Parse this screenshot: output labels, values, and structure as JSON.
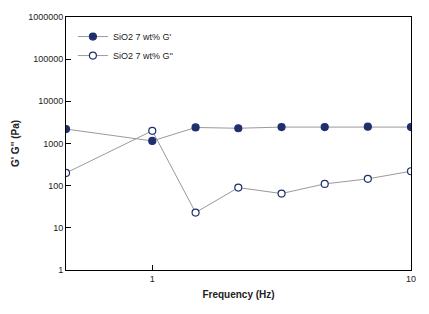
{
  "chart_data": {
    "type": "line",
    "x_label": "Frequency (Hz)",
    "y_label": "G' G'' (Pa)",
    "log": true,
    "grid": false,
    "legend": "upper left",
    "x": [
      0.464,
      1,
      1.47,
      2.15,
      3.16,
      4.64,
      6.81,
      10
    ],
    "series": [
      {
        "name": "SiO2 7 wt% G'",
        "color": "#1f2f6e",
        "marker": "filled circle",
        "line_style": "solid",
        "values": [
          2200,
          1150,
          2400,
          2300,
          2450,
          2450,
          2500,
          2450
        ]
      },
      {
        "name": "SiO2 7 wt% G''",
        "color": "#1f2f6e",
        "marker": "open circle",
        "line_style": "solid",
        "values": [
          200,
          2000,
          23,
          90,
          65,
          110,
          145,
          220
        ]
      }
    ],
    "xlim": [
      0.464,
      10
    ],
    "xticks": [
      1,
      10
    ],
    "ylim": [
      1,
      1000000
    ],
    "yticks": [
      1,
      10,
      100,
      1000,
      10000,
      100000,
      1000000
    ]
  }
}
